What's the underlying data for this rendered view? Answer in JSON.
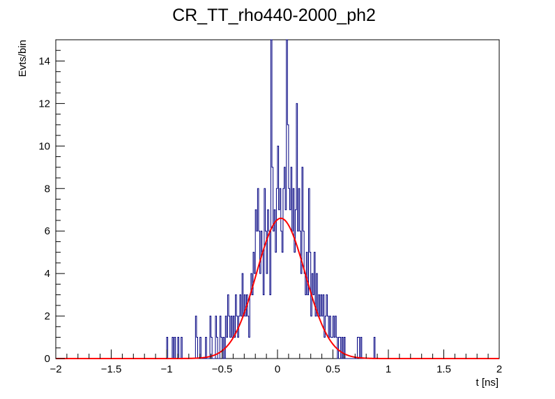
{
  "chart_data": {
    "type": "line",
    "title": "CR_TT_rho440-2000_ph2",
    "xlabel": "t [ns]",
    "ylabel": "Evts/bin",
    "xlim": [
      -2,
      2
    ],
    "ylim": [
      0,
      15
    ],
    "x_ticks": [
      -2,
      -1.5,
      -1,
      -0.5,
      0,
      0.5,
      1,
      1.5,
      2
    ],
    "x_tick_labels": [
      "−2",
      "−1.5",
      "−1",
      "−0.5",
      "0",
      "0.5",
      "1",
      "1.5",
      "2"
    ],
    "y_ticks": [
      0,
      2,
      4,
      6,
      8,
      10,
      12,
      14
    ],
    "y_tick_labels": [
      "0",
      "2",
      "4",
      "6",
      "8",
      "10",
      "12",
      "14"
    ],
    "grid": false,
    "series": [
      {
        "kind": "histogram",
        "color": "#000080",
        "bin_width": 0.01,
        "bins": [
          [
            -1.0,
            1
          ],
          [
            -0.95,
            1
          ],
          [
            -0.93,
            1
          ],
          [
            -0.92,
            0
          ],
          [
            -0.9,
            1
          ],
          [
            -0.89,
            0
          ],
          [
            -0.87,
            1
          ],
          [
            -0.86,
            0
          ],
          [
            -0.74,
            2
          ],
          [
            -0.73,
            1
          ],
          [
            -0.7,
            1
          ],
          [
            -0.65,
            1
          ],
          [
            -0.63,
            0
          ],
          [
            -0.61,
            2
          ],
          [
            -0.6,
            1
          ],
          [
            -0.59,
            0
          ],
          [
            -0.56,
            2
          ],
          [
            -0.55,
            1
          ],
          [
            -0.52,
            2
          ],
          [
            -0.51,
            1
          ],
          [
            -0.5,
            0
          ],
          [
            -0.49,
            1
          ],
          [
            -0.48,
            0
          ],
          [
            -0.47,
            2
          ],
          [
            -0.46,
            1
          ],
          [
            -0.45,
            3
          ],
          [
            -0.44,
            2
          ],
          [
            -0.43,
            1
          ],
          [
            -0.42,
            2
          ],
          [
            -0.41,
            1
          ],
          [
            -0.4,
            2
          ],
          [
            -0.39,
            1
          ],
          [
            -0.38,
            3
          ],
          [
            -0.37,
            2
          ],
          [
            -0.36,
            1
          ],
          [
            -0.35,
            2
          ],
          [
            -0.34,
            3
          ],
          [
            -0.33,
            2
          ],
          [
            -0.32,
            4
          ],
          [
            -0.31,
            2
          ],
          [
            -0.3,
            3
          ],
          [
            -0.29,
            2
          ],
          [
            -0.28,
            3
          ],
          [
            -0.27,
            2
          ],
          [
            -0.26,
            1
          ],
          [
            -0.25,
            3
          ],
          [
            -0.24,
            4
          ],
          [
            -0.23,
            3
          ],
          [
            -0.22,
            5
          ],
          [
            -0.21,
            4
          ],
          [
            -0.2,
            7
          ],
          [
            -0.19,
            6
          ],
          [
            -0.18,
            8
          ],
          [
            -0.17,
            6
          ],
          [
            -0.16,
            4
          ],
          [
            -0.15,
            6
          ],
          [
            -0.14,
            5
          ],
          [
            -0.13,
            3
          ],
          [
            -0.12,
            8
          ],
          [
            -0.11,
            6
          ],
          [
            -0.1,
            4
          ],
          [
            -0.09,
            7
          ],
          [
            -0.08,
            6
          ],
          [
            -0.07,
            3
          ],
          [
            -0.06,
            15
          ],
          [
            -0.05,
            9
          ],
          [
            -0.04,
            6
          ],
          [
            -0.03,
            7
          ],
          [
            -0.02,
            5
          ],
          [
            -0.01,
            8
          ],
          [
            0.0,
            10
          ],
          [
            0.01,
            7
          ],
          [
            0.02,
            8
          ],
          [
            0.03,
            6
          ],
          [
            0.04,
            5
          ],
          [
            0.05,
            8
          ],
          [
            0.06,
            9
          ],
          [
            0.07,
            7
          ],
          [
            0.08,
            15
          ],
          [
            0.09,
            11
          ],
          [
            0.1,
            8
          ],
          [
            0.11,
            7
          ],
          [
            0.12,
            9
          ],
          [
            0.13,
            6
          ],
          [
            0.14,
            8
          ],
          [
            0.15,
            5
          ],
          [
            0.16,
            7
          ],
          [
            0.17,
            12
          ],
          [
            0.18,
            6
          ],
          [
            0.19,
            8
          ],
          [
            0.2,
            6
          ],
          [
            0.21,
            4
          ],
          [
            0.22,
            9
          ],
          [
            0.23,
            6
          ],
          [
            0.24,
            4
          ],
          [
            0.25,
            3
          ],
          [
            0.26,
            5
          ],
          [
            0.27,
            3
          ],
          [
            0.28,
            8
          ],
          [
            0.29,
            5
          ],
          [
            0.3,
            2
          ],
          [
            0.31,
            4
          ],
          [
            0.32,
            3
          ],
          [
            0.33,
            5
          ],
          [
            0.34,
            2
          ],
          [
            0.35,
            4
          ],
          [
            0.36,
            2
          ],
          [
            0.37,
            3
          ],
          [
            0.38,
            2
          ],
          [
            0.39,
            3
          ],
          [
            0.4,
            2
          ],
          [
            0.41,
            3
          ],
          [
            0.42,
            1
          ],
          [
            0.43,
            2
          ],
          [
            0.44,
            3
          ],
          [
            0.45,
            2
          ],
          [
            0.46,
            1
          ],
          [
            0.47,
            2
          ],
          [
            0.48,
            1
          ],
          [
            0.49,
            1
          ],
          [
            0.5,
            2
          ],
          [
            0.51,
            1
          ],
          [
            0.52,
            2
          ],
          [
            0.53,
            1
          ],
          [
            0.54,
            0
          ],
          [
            0.55,
            1
          ],
          [
            0.56,
            1
          ],
          [
            0.57,
            0
          ],
          [
            0.58,
            1
          ],
          [
            0.59,
            0
          ],
          [
            0.6,
            1
          ],
          [
            0.61,
            0
          ],
          [
            0.72,
            1
          ],
          [
            0.73,
            1
          ],
          [
            0.74,
            0
          ],
          [
            0.75,
            1
          ],
          [
            0.76,
            0
          ],
          [
            0.87,
            1
          ],
          [
            0.88,
            0
          ]
        ]
      },
      {
        "kind": "fit",
        "function": "gaussian",
        "color": "#ff0000",
        "amplitude": 6.6,
        "mean": 0.03,
        "sigma": 0.22,
        "x_range": [
          -2,
          2
        ]
      }
    ]
  }
}
